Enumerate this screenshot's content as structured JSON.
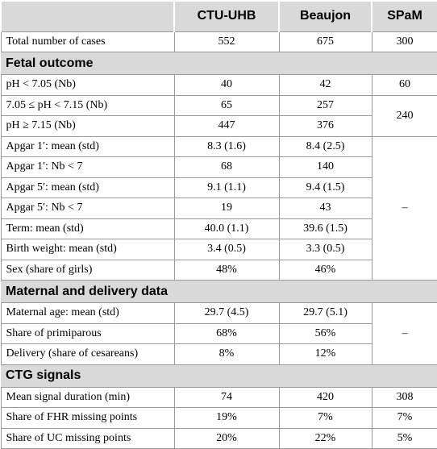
{
  "table": {
    "columns": [
      "CTU-UHB",
      "Beaujon",
      "SPaM"
    ],
    "total": [
      "Total number of cases",
      "552",
      "675",
      "300"
    ],
    "sections": [
      {
        "title": "Fetal outcome",
        "rows": [
          [
            "pH < 7.05 (Nb)",
            "40",
            "42",
            "60"
          ],
          [
            "7.05 ≤ pH < 7.15 (Nb)",
            "65",
            "257",
            "240"
          ],
          [
            "pH ≥ 7.15 (Nb)",
            "447",
            "376"
          ],
          [
            "Apgar 1′: mean (std)",
            "8.3 (1.6)",
            "8.4 (2.5)",
            "–"
          ],
          [
            "Apgar 1′: Nb < 7",
            "68",
            "140"
          ],
          [
            "Apgar 5′: mean (std)",
            "9.1 (1.1)",
            "9.4 (1.5)"
          ],
          [
            "Apgar 5′: Nb < 7",
            "19",
            "43"
          ],
          [
            "Term: mean (std)",
            "40.0 (1.1)",
            "39.6 (1.5)"
          ],
          [
            "Birth weight: mean (std)",
            "3.4 (0.5)",
            "3.3 (0.5)"
          ],
          [
            "Sex (share of girls)",
            "48%",
            "46%"
          ]
        ]
      },
      {
        "title": "Maternal and delivery data",
        "rows": [
          [
            "Maternal age: mean (std)",
            "29.7 (4.5)",
            "29.7 (5.1)",
            "–"
          ],
          [
            "Share of primiparous",
            "68%",
            "56%"
          ],
          [
            "Delivery (share of cesareans)",
            "8%",
            "12%"
          ]
        ]
      },
      {
        "title": "CTG signals",
        "rows": [
          [
            "Mean signal duration (min)",
            "74",
            "420",
            "308"
          ],
          [
            "Share of FHR missing points",
            "19%",
            "7%",
            "7%"
          ],
          [
            "Share of UC missing points",
            "20%",
            "22%",
            "5%"
          ]
        ]
      }
    ]
  }
}
